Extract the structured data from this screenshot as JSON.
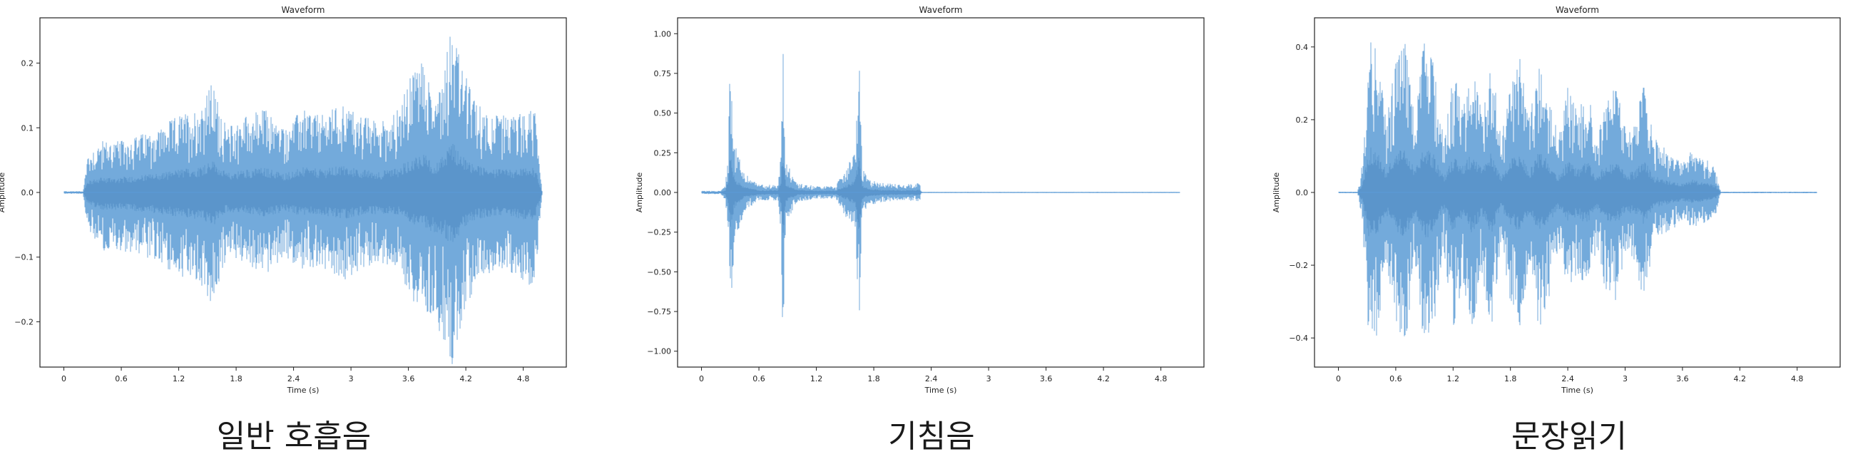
{
  "chart_data": [
    {
      "type": "line",
      "title": "Waveform",
      "xlabel": "Time (s)",
      "ylabel": "Amplitude",
      "caption": "일반 호흡음",
      "xlim": [
        -0.25,
        5.25
      ],
      "ylim": [
        -0.27,
        0.27
      ],
      "xticks": [
        0,
        0.6,
        1.2,
        1.8,
        2.4,
        3,
        3.6,
        4.2,
        4.8
      ],
      "xtick_labels": [
        "0",
        "0.6",
        "1.2",
        "1.8",
        "2.4",
        "3",
        "3.6",
        "4.2",
        "4.8"
      ],
      "yticks": [
        -0.2,
        -0.1,
        0.0,
        0.1,
        0.2
      ],
      "ytick_labels": [
        "−0.2",
        "−0.1",
        "0.0",
        "0.1",
        "0.2"
      ],
      "line_color": "#5b9bd5",
      "series": [
        {
          "x": [
            0.0,
            0.2,
            0.25,
            0.4,
            0.6,
            0.8,
            1.0,
            1.2,
            1.4,
            1.55,
            1.7,
            1.9,
            2.1,
            2.3,
            2.5,
            2.7,
            2.9,
            3.1,
            3.3,
            3.5,
            3.65,
            3.75,
            3.85,
            3.95,
            4.05,
            4.15,
            4.3,
            4.5,
            4.7,
            4.92,
            5.0
          ],
          "y_max": [
            0.002,
            0.002,
            0.06,
            0.08,
            0.08,
            0.09,
            0.1,
            0.12,
            0.13,
            0.17,
            0.1,
            0.12,
            0.13,
            0.1,
            0.13,
            0.12,
            0.14,
            0.12,
            0.11,
            0.13,
            0.19,
            0.21,
            0.15,
            0.18,
            0.27,
            0.2,
            0.14,
            0.12,
            0.12,
            0.13,
            0.0
          ],
          "y_min": [
            -0.002,
            -0.002,
            -0.06,
            -0.09,
            -0.09,
            -0.1,
            -0.11,
            -0.13,
            -0.14,
            -0.18,
            -0.1,
            -0.11,
            -0.13,
            -0.1,
            -0.12,
            -0.12,
            -0.14,
            -0.12,
            -0.11,
            -0.12,
            -0.17,
            -0.19,
            -0.2,
            -0.22,
            -0.27,
            -0.21,
            -0.14,
            -0.12,
            -0.13,
            -0.15,
            0.0
          ]
        }
      ]
    },
    {
      "type": "line",
      "title": "Waveform",
      "xlabel": "Time (s)",
      "ylabel": "Amplitude",
      "caption": "기침음",
      "xlim": [
        -0.25,
        5.25
      ],
      "ylim": [
        -1.1,
        1.1
      ],
      "xticks": [
        0,
        0.6,
        1.2,
        1.8,
        2.4,
        3,
        3.6,
        4.2,
        4.8
      ],
      "xtick_labels": [
        "0",
        "0.6",
        "1.2",
        "1.8",
        "2.4",
        "3",
        "3.6",
        "4.2",
        "4.8"
      ],
      "yticks": [
        -1.0,
        -0.75,
        -0.5,
        -0.25,
        0.0,
        0.25,
        0.5,
        0.75,
        1.0
      ],
      "ytick_labels": [
        "−1.00",
        "−0.75",
        "−0.50",
        "−0.25",
        "0.00",
        "0.25",
        "0.50",
        "0.75",
        "1.00"
      ],
      "line_color": "#5b9bd5",
      "series": [
        {
          "x": [
            0.0,
            0.2,
            0.25,
            0.28,
            0.3,
            0.35,
            0.45,
            0.6,
            0.8,
            0.83,
            0.85,
            0.88,
            1.0,
            1.2,
            1.4,
            1.6,
            1.65,
            1.68,
            1.75,
            1.9,
            2.1,
            2.28,
            2.3,
            5.0
          ],
          "y_max": [
            0.01,
            0.01,
            0.05,
            0.3,
            0.87,
            0.3,
            0.12,
            0.05,
            0.05,
            0.25,
            0.99,
            0.2,
            0.06,
            0.04,
            0.04,
            0.25,
            0.84,
            0.15,
            0.08,
            0.06,
            0.05,
            0.06,
            0.003,
            0.003
          ],
          "y_min": [
            -0.01,
            -0.01,
            -0.05,
            -0.3,
            -0.87,
            -0.3,
            -0.12,
            -0.05,
            -0.05,
            -0.25,
            -0.99,
            -0.2,
            -0.06,
            -0.04,
            -0.04,
            -0.25,
            -0.85,
            -0.15,
            -0.08,
            -0.06,
            -0.05,
            -0.06,
            -0.003,
            -0.003
          ]
        }
      ]
    },
    {
      "type": "line",
      "title": "Waveform",
      "xlabel": "Time (s)",
      "ylabel": "Amplitude",
      "caption": "문장읽기",
      "xlim": [
        -0.25,
        5.25
      ],
      "ylim": [
        -0.48,
        0.48
      ],
      "xticks": [
        0,
        0.6,
        1.2,
        1.8,
        2.4,
        3,
        3.6,
        4.2,
        4.8
      ],
      "xtick_labels": [
        "0",
        "0.6",
        "1.2",
        "1.8",
        "2.4",
        "3",
        "3.6",
        "4.2",
        "4.8"
      ],
      "yticks": [
        -0.4,
        -0.2,
        0.0,
        0.2,
        0.4
      ],
      "ytick_labels": [
        "−0.4",
        "−0.2",
        "0.0",
        "0.2",
        "0.4"
      ],
      "line_color": "#5b9bd5",
      "series": [
        {
          "x": [
            0.0,
            0.2,
            0.25,
            0.32,
            0.4,
            0.5,
            0.6,
            0.7,
            0.8,
            0.9,
            1.0,
            1.1,
            1.2,
            1.3,
            1.4,
            1.5,
            1.6,
            1.7,
            1.8,
            1.9,
            2.0,
            2.1,
            2.2,
            2.3,
            2.4,
            2.5,
            2.6,
            2.7,
            2.8,
            2.9,
            3.0,
            3.1,
            3.2,
            3.3,
            3.4,
            3.5,
            3.6,
            3.7,
            3.8,
            3.9,
            3.95,
            4.0,
            5.0
          ],
          "y_max": [
            0.002,
            0.002,
            0.08,
            0.42,
            0.4,
            0.2,
            0.38,
            0.42,
            0.2,
            0.43,
            0.35,
            0.15,
            0.33,
            0.25,
            0.37,
            0.22,
            0.38,
            0.15,
            0.3,
            0.38,
            0.2,
            0.38,
            0.3,
            0.15,
            0.3,
            0.22,
            0.3,
            0.15,
            0.26,
            0.3,
            0.18,
            0.2,
            0.3,
            0.15,
            0.13,
            0.1,
            0.08,
            0.12,
            0.1,
            0.08,
            0.06,
            0.002,
            0.002
          ],
          "y_min": [
            -0.002,
            -0.002,
            -0.08,
            -0.42,
            -0.4,
            -0.2,
            -0.36,
            -0.42,
            -0.2,
            -0.43,
            -0.38,
            -0.15,
            -0.38,
            -0.25,
            -0.38,
            -0.22,
            -0.38,
            -0.15,
            -0.3,
            -0.37,
            -0.2,
            -0.38,
            -0.3,
            -0.15,
            -0.28,
            -0.22,
            -0.3,
            -0.15,
            -0.28,
            -0.3,
            -0.18,
            -0.2,
            -0.3,
            -0.14,
            -0.12,
            -0.1,
            -0.08,
            -0.1,
            -0.09,
            -0.07,
            -0.06,
            -0.002,
            -0.002
          ]
        }
      ]
    }
  ]
}
